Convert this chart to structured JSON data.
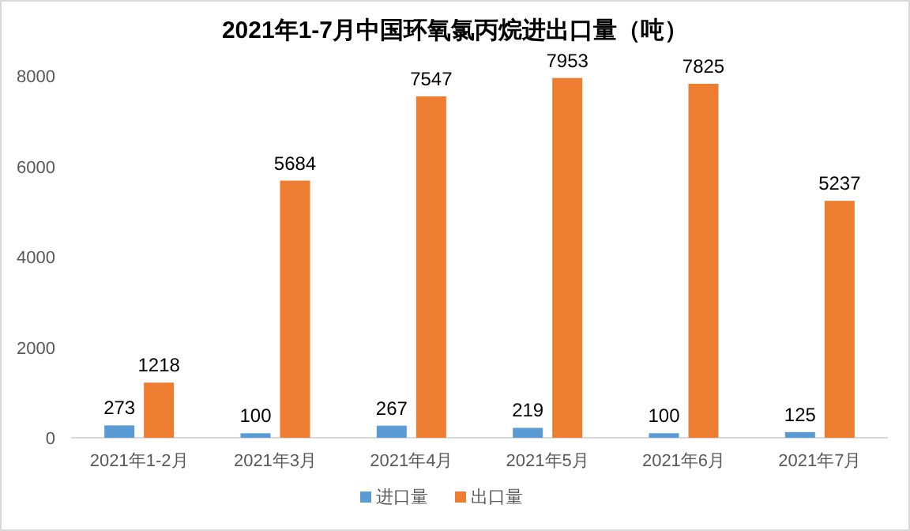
{
  "chart_data": {
    "type": "bar",
    "title": "2021年1-7月中国环氧氯丙烷进出口量（吨）",
    "categories": [
      "2021年1-2月",
      "2021年3月",
      "2021年4月",
      "2021年5月",
      "2021年6月",
      "2021年7月"
    ],
    "series": [
      {
        "name": "进口量",
        "color": "#5b9bd5",
        "values": [
          273,
          100,
          267,
          219,
          100,
          125
        ]
      },
      {
        "name": "出口量",
        "color": "#ed7d31",
        "values": [
          1218,
          5684,
          7547,
          7953,
          7825,
          5237
        ]
      }
    ],
    "ylim": [
      0,
      8000
    ],
    "yticks": [
      0,
      2000,
      4000,
      6000,
      8000
    ],
    "grid": false,
    "legend": "bottom",
    "data_labels": true
  }
}
